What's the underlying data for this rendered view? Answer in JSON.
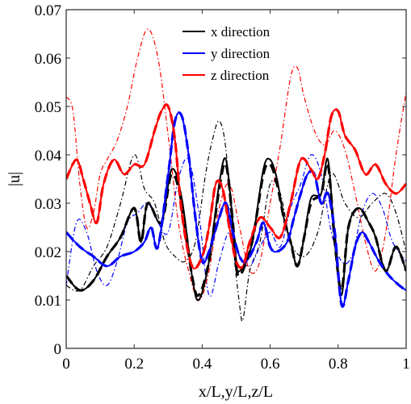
{
  "chart_data": {
    "type": "line",
    "xlabel": "x/L,y/L,z/L",
    "ylabel": "|u|",
    "xlim": [
      0,
      1
    ],
    "ylim": [
      0,
      0.07
    ],
    "xticks": [
      "0",
      "0.2",
      "0.4",
      "0.6",
      "0.8",
      "1"
    ],
    "yticks": [
      "0",
      "0.01",
      "0.02",
      "0.03",
      "0.04",
      "0.05",
      "0.06",
      "0.07"
    ],
    "grid": false,
    "legend_position": "top-center",
    "legend": [
      {
        "label": "x direction",
        "color": "#000000"
      },
      {
        "label": "y direction",
        "color": "#0000ff"
      },
      {
        "label": "z direction",
        "color": "#ff0000"
      }
    ],
    "series": [
      {
        "direction": "x",
        "style": "solid",
        "color": "#000000",
        "x": [
          0,
          0.04,
          0.08,
          0.12,
          0.16,
          0.2,
          0.22,
          0.24,
          0.28,
          0.31,
          0.34,
          0.37,
          0.39,
          0.42,
          0.45,
          0.47,
          0.49,
          0.5,
          0.51,
          0.53,
          0.55,
          0.58,
          0.6,
          0.62,
          0.64,
          0.66,
          0.68,
          0.7,
          0.72,
          0.75,
          0.77,
          0.79,
          0.81,
          0.83,
          0.86,
          0.89,
          0.91,
          0.94,
          0.97,
          1
        ],
        "y": [
          0.015,
          0.012,
          0.014,
          0.019,
          0.023,
          0.029,
          0.022,
          0.03,
          0.026,
          0.037,
          0.031,
          0.015,
          0.01,
          0.018,
          0.034,
          0.039,
          0.026,
          0.017,
          0.016,
          0.018,
          0.023,
          0.037,
          0.039,
          0.035,
          0.027,
          0.022,
          0.017,
          0.023,
          0.031,
          0.032,
          0.039,
          0.022,
          0.011,
          0.025,
          0.029,
          0.026,
          0.023,
          0.016,
          0.021,
          0.016
        ]
      },
      {
        "direction": "x",
        "style": "dashed",
        "color": "#000000",
        "x": [
          0,
          0.04,
          0.08,
          0.12,
          0.16,
          0.2,
          0.22,
          0.24,
          0.28,
          0.31,
          0.34,
          0.37,
          0.39,
          0.42,
          0.45,
          0.47,
          0.49,
          0.5,
          0.51,
          0.53,
          0.55,
          0.58,
          0.6,
          0.62,
          0.64,
          0.66,
          0.68,
          0.7,
          0.72,
          0.75,
          0.77,
          0.79,
          0.81,
          0.83,
          0.86,
          0.89,
          0.91,
          0.94,
          0.97,
          1
        ],
        "y": [
          0.015,
          0.012,
          0.014,
          0.019,
          0.023,
          0.029,
          0.022,
          0.03,
          0.026,
          0.036,
          0.03,
          0.015,
          0.011,
          0.018,
          0.033,
          0.038,
          0.026,
          0.017,
          0.015,
          0.018,
          0.023,
          0.036,
          0.038,
          0.034,
          0.027,
          0.022,
          0.017,
          0.023,
          0.03,
          0.032,
          0.038,
          0.022,
          0.012,
          0.025,
          0.029,
          0.026,
          0.023,
          0.016,
          0.021,
          0.016
        ]
      },
      {
        "direction": "x",
        "style": "dash-dot",
        "color": "#000000",
        "x": [
          0,
          0.04,
          0.08,
          0.12,
          0.16,
          0.2,
          0.23,
          0.26,
          0.29,
          0.32,
          0.35,
          0.38,
          0.41,
          0.43,
          0.45,
          0.47,
          0.49,
          0.51,
          0.52,
          0.54,
          0.57,
          0.6,
          0.63,
          0.66,
          0.7,
          0.74,
          0.78,
          0.82,
          0.86,
          0.9,
          0.94,
          0.97,
          1
        ],
        "y": [
          0.013,
          0.012,
          0.017,
          0.021,
          0.03,
          0.04,
          0.033,
          0.03,
          0.022,
          0.019,
          0.018,
          0.022,
          0.036,
          0.043,
          0.047,
          0.041,
          0.022,
          0.009,
          0.006,
          0.016,
          0.022,
          0.034,
          0.032,
          0.022,
          0.019,
          0.024,
          0.036,
          0.03,
          0.027,
          0.03,
          0.032,
          0.028,
          0.02
        ]
      },
      {
        "direction": "y",
        "style": "solid",
        "color": "#0000ff",
        "x": [
          0,
          0.04,
          0.08,
          0.12,
          0.16,
          0.2,
          0.23,
          0.25,
          0.27,
          0.3,
          0.32,
          0.34,
          0.36,
          0.38,
          0.4,
          0.42,
          0.45,
          0.47,
          0.49,
          0.51,
          0.53,
          0.56,
          0.58,
          0.6,
          0.62,
          0.65,
          0.67,
          0.69,
          0.71,
          0.73,
          0.75,
          0.77,
          0.79,
          0.81,
          0.83,
          0.85,
          0.87,
          0.89,
          0.92,
          0.95,
          0.98,
          1
        ],
        "y": [
          0.024,
          0.021,
          0.019,
          0.017,
          0.019,
          0.02,
          0.022,
          0.025,
          0.021,
          0.036,
          0.047,
          0.048,
          0.04,
          0.027,
          0.018,
          0.02,
          0.027,
          0.03,
          0.024,
          0.019,
          0.018,
          0.022,
          0.026,
          0.021,
          0.02,
          0.022,
          0.027,
          0.032,
          0.036,
          0.036,
          0.03,
          0.032,
          0.024,
          0.009,
          0.014,
          0.021,
          0.024,
          0.022,
          0.018,
          0.015,
          0.013,
          0.012
        ]
      },
      {
        "direction": "y",
        "style": "dashed",
        "color": "#0000ff",
        "x": [
          0,
          0.04,
          0.08,
          0.12,
          0.16,
          0.2,
          0.23,
          0.25,
          0.27,
          0.3,
          0.32,
          0.34,
          0.36,
          0.38,
          0.4,
          0.42,
          0.45,
          0.47,
          0.49,
          0.51,
          0.53,
          0.56,
          0.58,
          0.6,
          0.62,
          0.65,
          0.67,
          0.69,
          0.71,
          0.73,
          0.75,
          0.77,
          0.79,
          0.81,
          0.83,
          0.85,
          0.87,
          0.89,
          0.92,
          0.95,
          0.98,
          1
        ],
        "y": [
          0.024,
          0.021,
          0.019,
          0.017,
          0.019,
          0.02,
          0.022,
          0.025,
          0.021,
          0.036,
          0.047,
          0.048,
          0.04,
          0.027,
          0.018,
          0.02,
          0.027,
          0.03,
          0.024,
          0.019,
          0.018,
          0.022,
          0.026,
          0.021,
          0.02,
          0.022,
          0.027,
          0.032,
          0.036,
          0.036,
          0.03,
          0.032,
          0.024,
          0.009,
          0.014,
          0.021,
          0.024,
          0.022,
          0.018,
          0.015,
          0.013,
          0.012
        ]
      },
      {
        "direction": "y",
        "style": "dash-dot",
        "color": "#0000ff",
        "x": [
          0,
          0.03,
          0.06,
          0.09,
          0.12,
          0.15,
          0.18,
          0.21,
          0.24,
          0.27,
          0.3,
          0.33,
          0.36,
          0.39,
          0.42,
          0.45,
          0.48,
          0.51,
          0.54,
          0.57,
          0.6,
          0.63,
          0.66,
          0.69,
          0.72,
          0.75,
          0.78,
          0.81,
          0.84,
          0.87,
          0.9,
          0.93,
          0.96,
          1
        ],
        "y": [
          0.013,
          0.026,
          0.024,
          0.016,
          0.013,
          0.018,
          0.026,
          0.028,
          0.03,
          0.026,
          0.024,
          0.035,
          0.039,
          0.028,
          0.011,
          0.018,
          0.024,
          0.019,
          0.017,
          0.021,
          0.024,
          0.021,
          0.029,
          0.034,
          0.04,
          0.036,
          0.024,
          0.018,
          0.019,
          0.028,
          0.032,
          0.029,
          0.022,
          0.018
        ]
      },
      {
        "direction": "z",
        "style": "solid",
        "color": "#ff0000",
        "x": [
          0,
          0.03,
          0.05,
          0.07,
          0.09,
          0.11,
          0.14,
          0.17,
          0.2,
          0.23,
          0.26,
          0.28,
          0.3,
          0.32,
          0.34,
          0.37,
          0.4,
          0.42,
          0.44,
          0.46,
          0.48,
          0.5,
          0.52,
          0.54,
          0.57,
          0.6,
          0.63,
          0.66,
          0.69,
          0.72,
          0.74,
          0.76,
          0.78,
          0.8,
          0.82,
          0.85,
          0.88,
          0.91,
          0.94,
          0.97,
          1
        ],
        "y": [
          0.035,
          0.039,
          0.035,
          0.03,
          0.026,
          0.034,
          0.039,
          0.036,
          0.038,
          0.038,
          0.045,
          0.049,
          0.05,
          0.043,
          0.028,
          0.017,
          0.019,
          0.025,
          0.034,
          0.033,
          0.025,
          0.018,
          0.017,
          0.022,
          0.027,
          0.025,
          0.023,
          0.03,
          0.039,
          0.037,
          0.035,
          0.04,
          0.048,
          0.049,
          0.044,
          0.041,
          0.036,
          0.038,
          0.034,
          0.032,
          0.034
        ]
      },
      {
        "direction": "z",
        "style": "dashed",
        "color": "#ff0000",
        "x": [
          0,
          0.03,
          0.05,
          0.07,
          0.09,
          0.11,
          0.14,
          0.17,
          0.2,
          0.23,
          0.26,
          0.28,
          0.3,
          0.32,
          0.34,
          0.37,
          0.4,
          0.42,
          0.44,
          0.46,
          0.48,
          0.5,
          0.52,
          0.54,
          0.57,
          0.6,
          0.63,
          0.66,
          0.69,
          0.72,
          0.74,
          0.76,
          0.78,
          0.8,
          0.82,
          0.85,
          0.88,
          0.91,
          0.94,
          0.97,
          1
        ],
        "y": [
          0.035,
          0.039,
          0.035,
          0.03,
          0.026,
          0.034,
          0.039,
          0.036,
          0.038,
          0.038,
          0.045,
          0.049,
          0.05,
          0.043,
          0.028,
          0.017,
          0.019,
          0.025,
          0.034,
          0.033,
          0.025,
          0.018,
          0.017,
          0.022,
          0.027,
          0.025,
          0.023,
          0.03,
          0.039,
          0.037,
          0.035,
          0.04,
          0.048,
          0.049,
          0.044,
          0.041,
          0.036,
          0.038,
          0.034,
          0.032,
          0.034
        ]
      },
      {
        "direction": "z",
        "style": "dash-dot",
        "color": "#ff0000",
        "x": [
          0,
          0.02,
          0.04,
          0.06,
          0.08,
          0.1,
          0.12,
          0.15,
          0.18,
          0.21,
          0.24,
          0.27,
          0.3,
          0.33,
          0.36,
          0.39,
          0.42,
          0.45,
          0.48,
          0.51,
          0.54,
          0.57,
          0.6,
          0.63,
          0.66,
          0.68,
          0.7,
          0.73,
          0.76,
          0.79,
          0.82,
          0.85,
          0.88,
          0.91,
          0.94,
          0.97,
          1
        ],
        "y": [
          0.052,
          0.049,
          0.034,
          0.025,
          0.028,
          0.036,
          0.039,
          0.043,
          0.05,
          0.06,
          0.066,
          0.06,
          0.044,
          0.026,
          0.016,
          0.01,
          0.016,
          0.029,
          0.034,
          0.025,
          0.016,
          0.018,
          0.03,
          0.042,
          0.056,
          0.058,
          0.052,
          0.045,
          0.042,
          0.045,
          0.041,
          0.032,
          0.022,
          0.016,
          0.024,
          0.04,
          0.053
        ]
      }
    ]
  }
}
